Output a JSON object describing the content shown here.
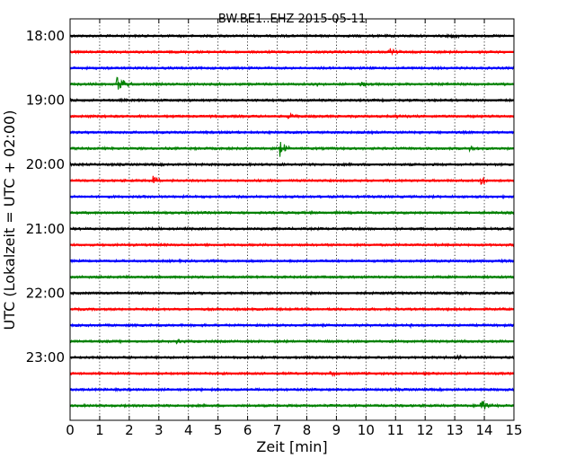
{
  "chart_data": {
    "type": "line",
    "title": "BW.BE1..EHZ 2015-05-11",
    "xlabel": "Zeit  [min]",
    "ylabel": "UTC (Lokalzeit = UTC + 02:00)",
    "xlim": [
      0,
      15
    ],
    "x_ticks": [
      "0",
      "1",
      "2",
      "3",
      "4",
      "5",
      "6",
      "7",
      "8",
      "9",
      "10",
      "11",
      "12",
      "13",
      "14",
      "15"
    ],
    "y_ticks": [
      "18:00",
      "19:00",
      "20:00",
      "21:00",
      "22:00",
      "23:00"
    ],
    "grid": "vertical dotted",
    "trace_colors": [
      "#000000",
      "#ff0000",
      "#0000ff",
      "#008000"
    ],
    "traces": [
      {
        "start": "18:00",
        "events": [
          {
            "minute": 12.9,
            "amp": 0.25
          }
        ]
      },
      {
        "start": "18:15",
        "events": [
          {
            "minute": 10.8,
            "amp": 0.35
          }
        ]
      },
      {
        "start": "18:30",
        "events": []
      },
      {
        "start": "18:45",
        "events": [
          {
            "minute": 1.6,
            "amp": 1.0
          },
          {
            "minute": 8.3,
            "amp": 0.3
          },
          {
            "minute": 9.8,
            "amp": 0.3
          }
        ]
      },
      {
        "start": "19:00",
        "events": []
      },
      {
        "start": "19:15",
        "events": [
          {
            "minute": 7.4,
            "amp": 0.3
          },
          {
            "minute": 11.0,
            "amp": 0.3
          }
        ]
      },
      {
        "start": "19:30",
        "events": []
      },
      {
        "start": "19:45",
        "events": [
          {
            "minute": 7.1,
            "amp": 0.95
          },
          {
            "minute": 13.5,
            "amp": 0.25
          }
        ]
      },
      {
        "start": "20:00",
        "events": [
          {
            "minute": 7.2,
            "amp": 0.3
          }
        ]
      },
      {
        "start": "20:15",
        "events": [
          {
            "minute": 2.8,
            "amp": 0.45
          },
          {
            "minute": 13.9,
            "amp": 0.5
          }
        ]
      },
      {
        "start": "20:30",
        "events": []
      },
      {
        "start": "20:45",
        "events": []
      },
      {
        "start": "21:00",
        "events": []
      },
      {
        "start": "21:15",
        "events": []
      },
      {
        "start": "21:30",
        "events": []
      },
      {
        "start": "21:45",
        "events": []
      },
      {
        "start": "22:00",
        "events": []
      },
      {
        "start": "22:15",
        "events": []
      },
      {
        "start": "22:30",
        "events": [
          {
            "minute": 11.5,
            "amp": 0.25
          }
        ]
      },
      {
        "start": "22:45",
        "events": [
          {
            "minute": 3.6,
            "amp": 0.25
          }
        ]
      },
      {
        "start": "23:00",
        "events": [
          {
            "minute": 13.1,
            "amp": 0.15
          }
        ]
      },
      {
        "start": "23:15",
        "events": [
          {
            "minute": 8.8,
            "amp": 0.25
          }
        ]
      },
      {
        "start": "23:30",
        "events": []
      },
      {
        "start": "23:45",
        "events": [
          {
            "minute": 13.9,
            "amp": 0.8
          }
        ]
      }
    ]
  }
}
